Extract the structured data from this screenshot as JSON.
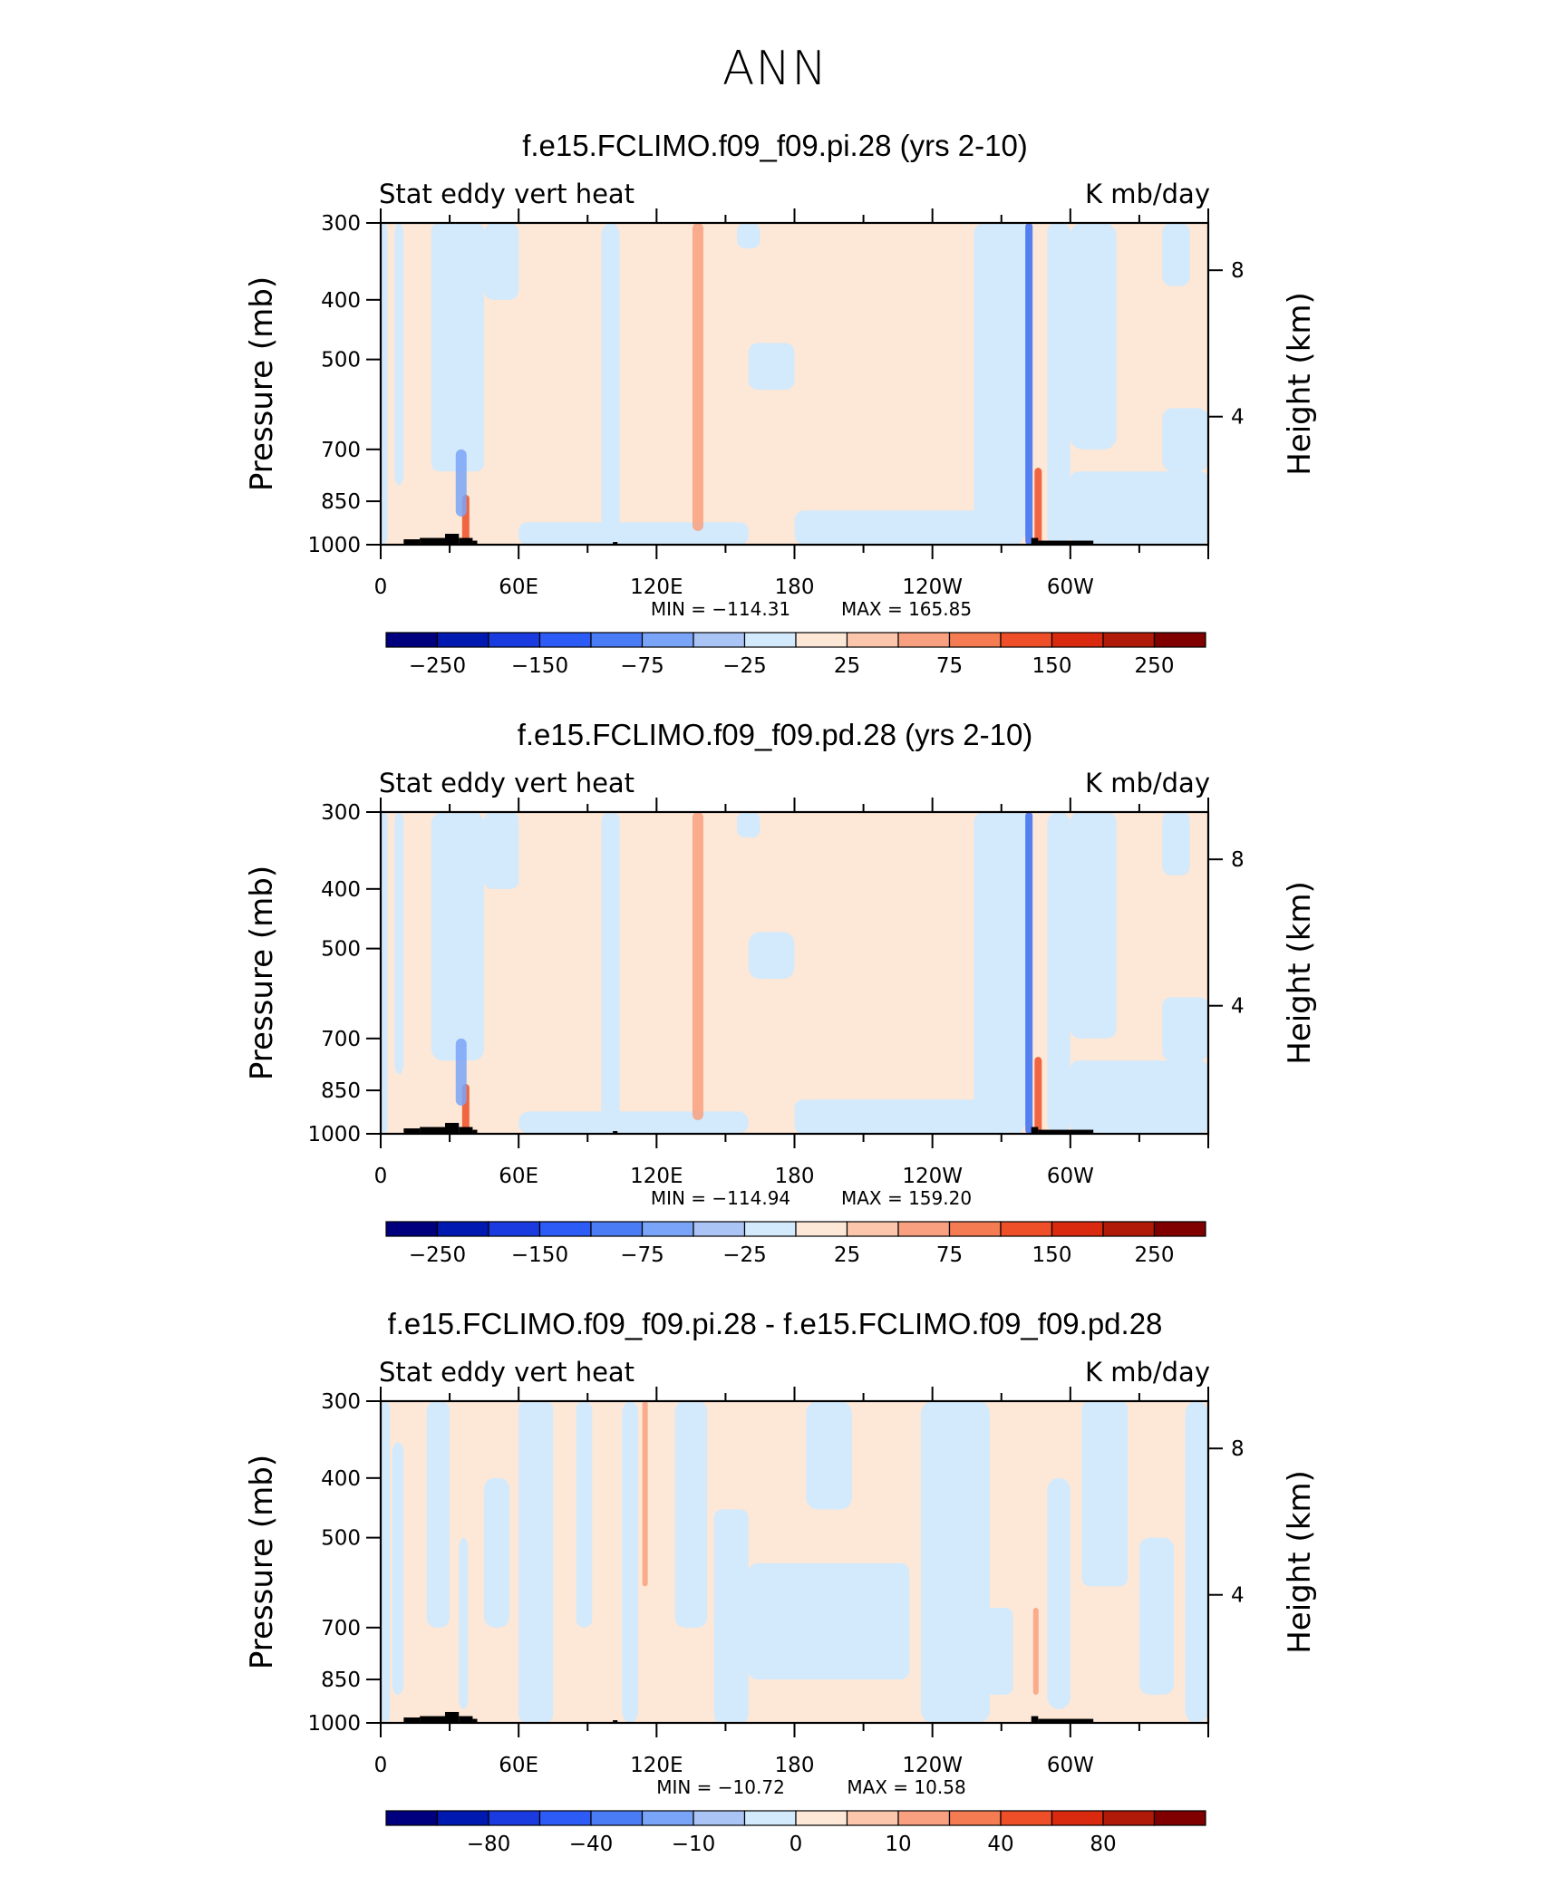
{
  "title": "ANN",
  "chart_data": [
    {
      "type": "heatmap",
      "title": "f.e15.FCLIMO.f09_f09.pi.28 (yrs 2-10)",
      "variable_label": "Stat eddy vert heat",
      "units_label": "K mb/day",
      "ylabel": "Pressure (mb)",
      "ylabel_right": "Height (km)",
      "x_ticks": [
        "0",
        "60E",
        "120E",
        "180",
        "120W",
        "60W"
      ],
      "y_ticks": [
        "300",
        "400",
        "500",
        "700",
        "850",
        "1000"
      ],
      "y_right_ticks": [
        "8",
        "4"
      ],
      "y_scale": "log",
      "ylim": [
        1000,
        300
      ],
      "xlim": [
        0,
        360
      ],
      "min_label": "MIN = −114.31",
      "max_label": "MAX = 165.85",
      "min": -114.31,
      "max": 165.85,
      "colorbar_labels": [
        "−250",
        "−150",
        "−75",
        "−25",
        "25",
        "75",
        "150",
        "250"
      ],
      "features": [
        {
          "lon": 138,
          "p_top": 300,
          "p_bottom": 950,
          "value": 60
        },
        {
          "lon": 282,
          "p_top": 300,
          "p_bottom": 1000,
          "value": -110
        },
        {
          "lon": 286,
          "p_top": 750,
          "p_bottom": 1000,
          "value": 160
        },
        {
          "lon": 37,
          "p_top": 830,
          "p_bottom": 1000,
          "value": 160
        },
        {
          "lon": 35,
          "p_top": 700,
          "p_bottom": 900,
          "value": -60
        }
      ]
    },
    {
      "type": "heatmap",
      "title": "f.e15.FCLIMO.f09_f09.pd.28 (yrs 2-10)",
      "variable_label": "Stat eddy vert heat",
      "units_label": "K mb/day",
      "ylabel": "Pressure (mb)",
      "ylabel_right": "Height (km)",
      "x_ticks": [
        "0",
        "60E",
        "120E",
        "180",
        "120W",
        "60W"
      ],
      "y_ticks": [
        "300",
        "400",
        "500",
        "700",
        "850",
        "1000"
      ],
      "y_right_ticks": [
        "8",
        "4"
      ],
      "y_scale": "log",
      "ylim": [
        1000,
        300
      ],
      "xlim": [
        0,
        360
      ],
      "min_label": "MIN = −114.94",
      "max_label": "MAX = 159.20",
      "min": -114.94,
      "max": 159.2,
      "colorbar_labels": [
        "−250",
        "−150",
        "−75",
        "−25",
        "25",
        "75",
        "150",
        "250"
      ],
      "features": [
        {
          "lon": 138,
          "p_top": 300,
          "p_bottom": 950,
          "value": 60
        },
        {
          "lon": 282,
          "p_top": 300,
          "p_bottom": 1000,
          "value": -110
        },
        {
          "lon": 286,
          "p_top": 750,
          "p_bottom": 1000,
          "value": 155
        },
        {
          "lon": 37,
          "p_top": 830,
          "p_bottom": 1000,
          "value": 155
        },
        {
          "lon": 35,
          "p_top": 700,
          "p_bottom": 900,
          "value": -60
        }
      ]
    },
    {
      "type": "heatmap",
      "title": "f.e15.FCLIMO.f09_f09.pi.28 - f.e15.FCLIMO.f09_f09.pd.28",
      "variable_label": "Stat eddy vert heat",
      "units_label": "K mb/day",
      "ylabel": "Pressure (mb)",
      "ylabel_right": "Height (km)",
      "x_ticks": [
        "0",
        "60E",
        "120E",
        "180",
        "120W",
        "60W"
      ],
      "y_ticks": [
        "300",
        "400",
        "500",
        "700",
        "850",
        "1000"
      ],
      "y_right_ticks": [
        "8",
        "4"
      ],
      "y_scale": "log",
      "ylim": [
        1000,
        300
      ],
      "xlim": [
        0,
        360
      ],
      "min_label": "MIN =  −10.72",
      "max_label": "MAX =   10.58",
      "min": -10.72,
      "max": 10.58,
      "colorbar_labels": [
        "−80",
        "−40",
        "−10",
        "0",
        "10",
        "40",
        "80"
      ],
      "features": [
        {
          "lon": 115,
          "p_top": 300,
          "p_bottom": 600,
          "value": 10
        },
        {
          "lon": 285,
          "p_top": 650,
          "p_bottom": 900,
          "value": 10
        }
      ]
    }
  ]
}
